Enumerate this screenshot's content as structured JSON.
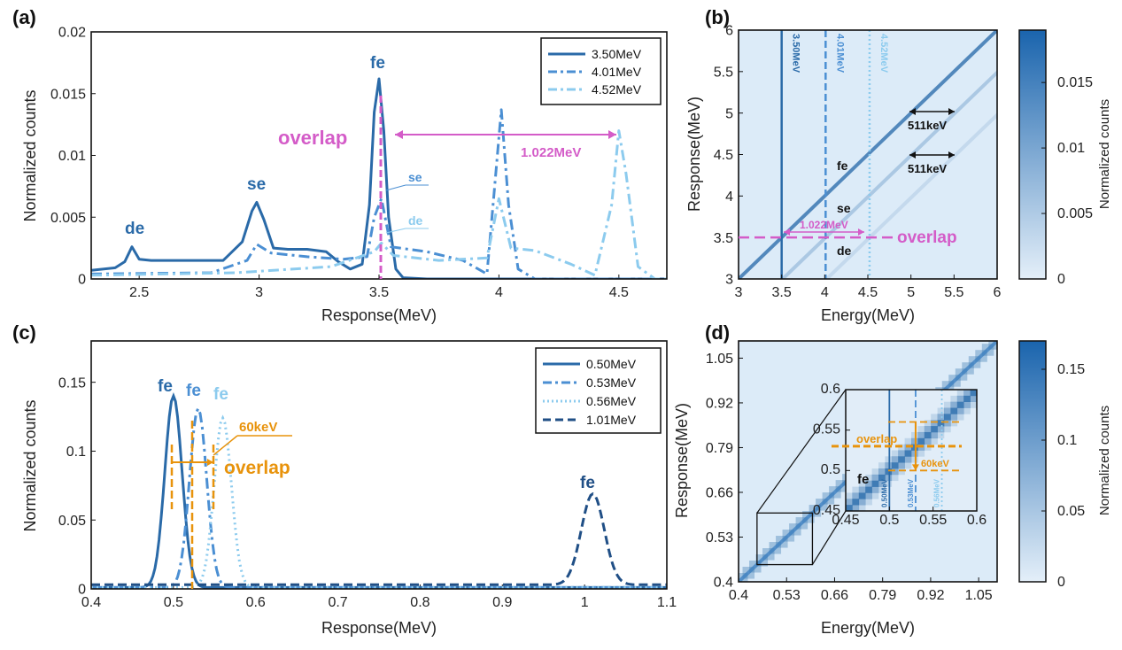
{
  "colors": {
    "c1": "#2a6aa8",
    "c2": "#4b8fd3",
    "c3": "#8ccbee",
    "c4": "#204f86",
    "magenta": "#d45cc8",
    "orange": "#e8930c",
    "hm_bg": "#dcebf8",
    "hm_line": "#2f6fad",
    "cb_top": "#1a64ad",
    "cb_bottom": "#e4eff9"
  },
  "panels": {
    "a": {
      "label": "(a)"
    },
    "b": {
      "label": "(b)"
    },
    "c": {
      "label": "(c)"
    },
    "d": {
      "label": "(d)"
    }
  },
  "chart_data": [
    {
      "id": "a",
      "type": "line",
      "xlabel": "Response(MeV)",
      "ylabel": "Normalized counts",
      "xlim": [
        2.3,
        4.7
      ],
      "ylim": [
        0,
        0.02
      ],
      "xticks": [
        "2.5",
        "3",
        "3.5",
        "4",
        "4.5"
      ],
      "xtick_values": [
        2.5,
        3,
        3.5,
        4,
        4.5
      ],
      "yticks": [
        "0",
        "0.005",
        "0.01",
        "0.015",
        "0.02"
      ],
      "ytick_values": [
        0,
        0.005,
        0.01,
        0.015,
        0.02
      ],
      "legend_position": "top-right",
      "series": [
        {
          "name": "3.50MeV",
          "color": "c1",
          "dash": "solid",
          "x": [
            2.3,
            2.4,
            2.44,
            2.47,
            2.5,
            2.55,
            2.7,
            2.85,
            2.93,
            2.97,
            2.99,
            3.02,
            3.06,
            3.12,
            3.2,
            3.28,
            3.33,
            3.38,
            3.43,
            3.46,
            3.48,
            3.5,
            3.52,
            3.54,
            3.57,
            3.6,
            3.7,
            4.7
          ],
          "y": [
            0.0007,
            0.0009,
            0.0014,
            0.0026,
            0.0016,
            0.0015,
            0.0015,
            0.0015,
            0.003,
            0.0055,
            0.0062,
            0.0048,
            0.0025,
            0.0024,
            0.0024,
            0.0022,
            0.0014,
            0.0008,
            0.0012,
            0.006,
            0.0135,
            0.0162,
            0.012,
            0.005,
            0.0008,
            0.0001,
            0,
            0
          ]
        },
        {
          "name": "4.01MeV",
          "color": "c2",
          "dash": "dashdot",
          "x": [
            2.3,
            2.8,
            2.95,
            2.99,
            3.05,
            3.2,
            3.35,
            3.45,
            3.48,
            3.51,
            3.55,
            3.7,
            3.85,
            3.95,
            3.98,
            4.01,
            4.04,
            4.08,
            4.15,
            4.7
          ],
          "y": [
            0.0004,
            0.0005,
            0.0015,
            0.0028,
            0.0021,
            0.0018,
            0.0016,
            0.0018,
            0.005,
            0.0065,
            0.0026,
            0.0022,
            0.0015,
            0.0004,
            0.007,
            0.0137,
            0.006,
            0.0008,
            0,
            0
          ]
        },
        {
          "name": "4.52MeV",
          "color": "c3",
          "dash": "dashdot",
          "x": [
            2.3,
            2.9,
            3.3,
            3.48,
            3.51,
            3.56,
            3.75,
            3.95,
            4.0,
            4.05,
            4.15,
            4.3,
            4.4,
            4.47,
            4.5,
            4.53,
            4.58,
            4.65,
            4.7
          ],
          "y": [
            0.0003,
            0.0005,
            0.001,
            0.0022,
            0.0029,
            0.0019,
            0.0015,
            0.0017,
            0.0065,
            0.0025,
            0.0023,
            0.0012,
            0.0003,
            0.006,
            0.012,
            0.0085,
            0.001,
            0,
            0
          ]
        }
      ],
      "annotations": {
        "de_main": "de",
        "se_main": "se",
        "fe_main": "fe",
        "overlap": "overlap",
        "sep": "1.022MeV",
        "se_small": "se",
        "de_small": "de"
      }
    },
    {
      "id": "b",
      "type": "heatmap",
      "xlabel": "Energy(MeV)",
      "ylabel": "Response(MeV)",
      "colorbar_label": "Normalized counts",
      "xlim": [
        3,
        6
      ],
      "ylim": [
        3,
        6
      ],
      "xticks": [
        "3",
        "3.5",
        "4",
        "4.5",
        "5",
        "5.5",
        "6"
      ],
      "xtick_values": [
        3,
        3.5,
        4,
        4.5,
        5,
        5.5,
        6
      ],
      "yticks": [
        "3",
        "3.5",
        "4",
        "4.5",
        "5",
        "5.5",
        "6"
      ],
      "ytick_values": [
        3,
        3.5,
        4,
        4.5,
        5,
        5.5,
        6
      ],
      "colorbar_ticks": [
        "0",
        "0.005",
        "0.01",
        "0.015"
      ],
      "colorbar_tick_values": [
        0,
        0.005,
        0.01,
        0.015
      ],
      "colorbar_max": 0.019,
      "vlines": [
        {
          "x": 3.5,
          "label": "3.50MeV",
          "color": "c1",
          "dash": "solid"
        },
        {
          "x": 4.01,
          "label": "4.01MeV",
          "color": "c2",
          "dash": "dashed"
        },
        {
          "x": 4.52,
          "label": "4.52MeV",
          "color": "c3",
          "dash": "dotted"
        }
      ],
      "hline": {
        "y": 3.5,
        "label": "overlap"
      },
      "annotations": {
        "sep": "1.022MeV",
        "k1": "511keV",
        "k2": "511keV",
        "fe": "fe",
        "se": "se",
        "de": "de"
      }
    },
    {
      "id": "c",
      "type": "line",
      "xlabel": "Response(MeV)",
      "ylabel": "Normalized counts",
      "xlim": [
        0.4,
        1.1
      ],
      "ylim": [
        0,
        0.18
      ],
      "xticks": [
        "0.4",
        "0.5",
        "0.6",
        "0.7",
        "0.8",
        "0.9",
        "1",
        "1.1"
      ],
      "xtick_values": [
        0.4,
        0.5,
        0.6,
        0.7,
        0.8,
        0.9,
        1.0,
        1.1
      ],
      "yticks": [
        "0",
        "0.05",
        "0.1",
        "0.15"
      ],
      "ytick_values": [
        0,
        0.05,
        0.1,
        0.15
      ],
      "legend_position": "top-right",
      "series": [
        {
          "name": "0.50MeV",
          "color": "c1",
          "dash": "solid",
          "peak": 0.5,
          "amp": 0.139,
          "sigma": 0.0105,
          "base": 0.001
        },
        {
          "name": "0.53MeV",
          "color": "c2",
          "dash": "dashdot",
          "peak": 0.53,
          "amp": 0.13,
          "sigma": 0.0105,
          "base": 0.001
        },
        {
          "name": "0.56MeV",
          "color": "c3",
          "dash": "dotted",
          "peak": 0.56,
          "amp": 0.123,
          "sigma": 0.0105,
          "base": 0.001
        },
        {
          "name": "1.01MeV",
          "color": "c4",
          "dash": "dashed",
          "peak": 1.01,
          "amp": 0.066,
          "sigma": 0.014,
          "base": 0.003
        }
      ],
      "annotations": {
        "fe1": "fe",
        "fe2": "fe",
        "fe3": "fe",
        "fe4": "fe",
        "k60": "60keV",
        "overlap": "overlap"
      }
    },
    {
      "id": "d",
      "type": "heatmap",
      "xlabel": "Energy(MeV)",
      "ylabel": "Response(MeV)",
      "colorbar_label": "Normalized counts",
      "xlim": [
        0.4,
        1.1
      ],
      "ylim": [
        0.4,
        1.1
      ],
      "xticks": [
        "0.4",
        "0.53",
        "0.66",
        "0.79",
        "0.92",
        "1.05"
      ],
      "xtick_values": [
        0.4,
        0.53,
        0.66,
        0.79,
        0.92,
        1.05
      ],
      "yticks": [
        "0.4",
        "0.53",
        "0.66",
        "0.79",
        "0.92",
        "1.05"
      ],
      "ytick_values": [
        0.4,
        0.53,
        0.66,
        0.79,
        0.92,
        1.05
      ],
      "colorbar_ticks": [
        "0",
        "0.05",
        "0.1",
        "0.15"
      ],
      "colorbar_tick_values": [
        0,
        0.05,
        0.1,
        0.15
      ],
      "colorbar_max": 0.17,
      "zoom_box": {
        "x": [
          0.45,
          0.6
        ],
        "y": [
          0.45,
          0.6
        ]
      },
      "inset": {
        "xlim": [
          0.45,
          0.6
        ],
        "ylim": [
          0.45,
          0.6
        ],
        "xticks": [
          "0.45",
          "0.5",
          "0.55",
          "0.6"
        ],
        "xtick_values": [
          0.45,
          0.5,
          0.55,
          0.6
        ],
        "yticks": [
          "0.45",
          "0.5",
          "0.55",
          "0.6"
        ],
        "ytick_values": [
          0.45,
          0.5,
          0.55,
          0.6
        ],
        "vlines": [
          {
            "x": 0.5,
            "label": "0.50MeV",
            "color": "c1",
            "dash": "solid"
          },
          {
            "x": 0.53,
            "label": "0.53MeV",
            "color": "c2",
            "dash": "dashed"
          },
          {
            "x": 0.56,
            "label": "0.56MeV",
            "color": "c3",
            "dash": "dotted"
          }
        ],
        "hlines": [
          0.5,
          0.53,
          0.56
        ],
        "annotations": {
          "overlap": "overlap",
          "k60": "60keV",
          "fe": "fe"
        }
      }
    }
  ]
}
